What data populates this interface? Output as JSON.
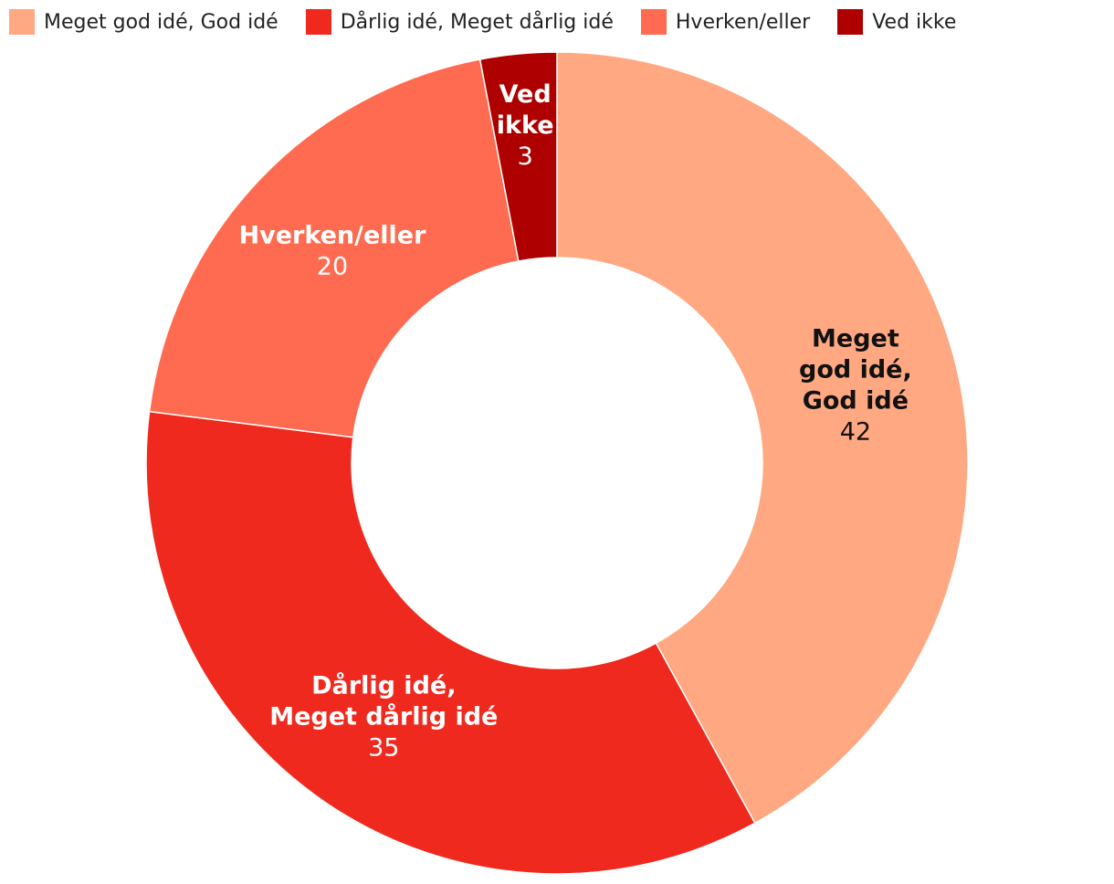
{
  "chart_data": {
    "type": "pie",
    "donut": true,
    "legend_position": "top-left",
    "slices": [
      {
        "name": "Meget god idé, God idé",
        "value": 42,
        "color": "#FFA882",
        "label_lines": [
          "Meget",
          "god idé,",
          "God idé"
        ],
        "label_color": "#111111"
      },
      {
        "name": "Dårlig idé, Meget dårlig idé",
        "value": 35,
        "color": "#F0291E",
        "label_lines": [
          "Dårlig idé,",
          "Meget dårlig idé"
        ],
        "label_color": "#ffffff"
      },
      {
        "name": "Hverken/eller",
        "value": 20,
        "color": "#FF6B50",
        "label_lines": [
          "Hverken/eller"
        ],
        "label_color": "#ffffff"
      },
      {
        "name": "Ved ikke",
        "value": 3,
        "color": "#AF0000",
        "label_lines": [
          "Ved",
          "ikke"
        ],
        "label_color": "#ffffff"
      }
    ]
  }
}
